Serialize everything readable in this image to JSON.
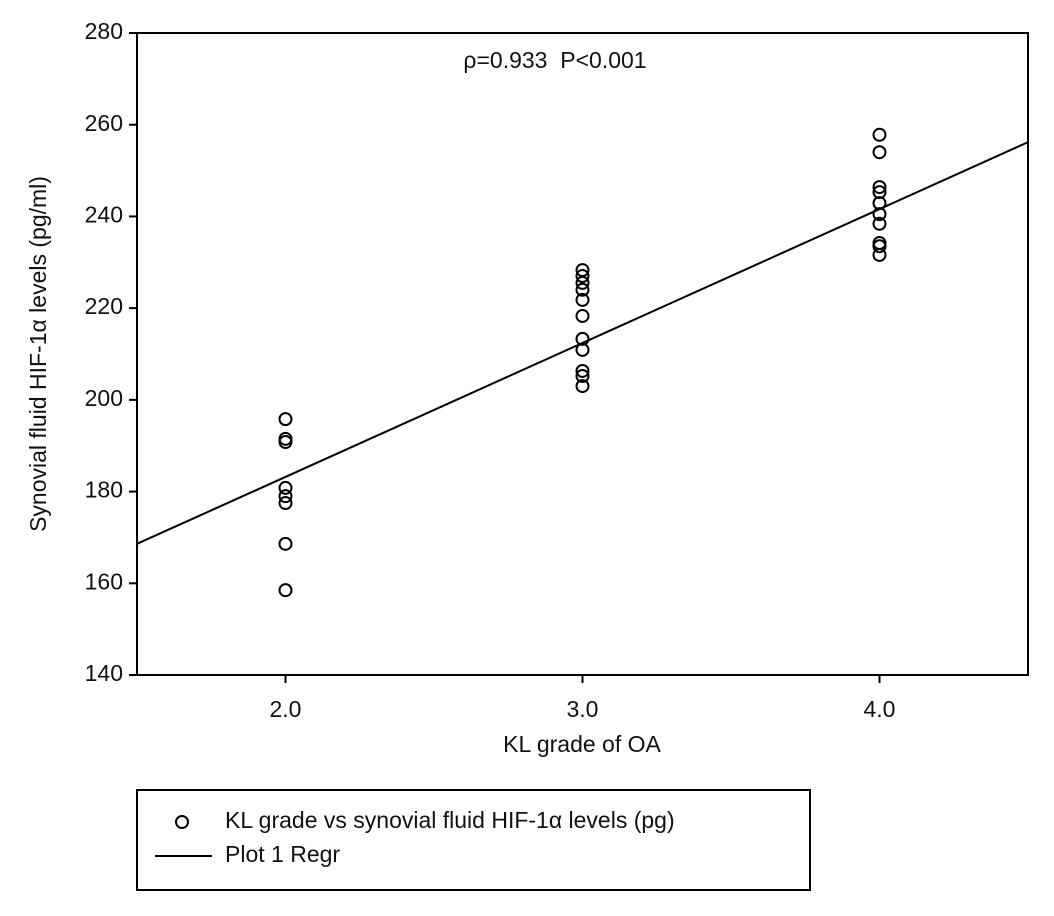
{
  "chart_data": {
    "type": "scatter",
    "annotation": "ρ=0.933  P<0.001",
    "x_label": "KL grade of OA",
    "y_label": "Synovial fluid HIF-1α levels (pg/ml)",
    "xlim": [
      1.5,
      4.5
    ],
    "xticks": [
      {
        "value": 2,
        "label": "2.0"
      },
      {
        "value": 3,
        "label": "3.0"
      },
      {
        "value": 4,
        "label": "4.0"
      }
    ],
    "ylim": [
      140,
      280
    ],
    "yticks": [
      140,
      160,
      180,
      200,
      220,
      240,
      260,
      280
    ],
    "grid": false,
    "legend": "bottom",
    "series": [
      {
        "name": "KL grade vs synovial fluid HIF-1α levels (pg)",
        "color": "#000000",
        "mode": "markers",
        "x": [
          2,
          2,
          2,
          2,
          2,
          2,
          2,
          2,
          3,
          3,
          3,
          3,
          3,
          3,
          3,
          3,
          3,
          3,
          3,
          4,
          4,
          4,
          4,
          4,
          4,
          4,
          4,
          4,
          4
        ],
        "values": [
          195.8,
          191.5,
          190.8,
          180.8,
          179.0,
          177.5,
          168.6,
          158.5,
          228.3,
          227.0,
          225.5,
          224.0,
          221.8,
          218.3,
          213.3,
          210.9,
          206.3,
          205.2,
          203.0,
          257.8,
          254.0,
          246.4,
          245.3,
          242.9,
          240.5,
          238.4,
          234.2,
          233.5,
          231.6
        ]
      },
      {
        "name": "Plot 1 Regr",
        "color": "#000000",
        "mode": "line",
        "x": [
          1.5,
          4.5
        ],
        "values": [
          168.6,
          256.2
        ]
      }
    ]
  }
}
